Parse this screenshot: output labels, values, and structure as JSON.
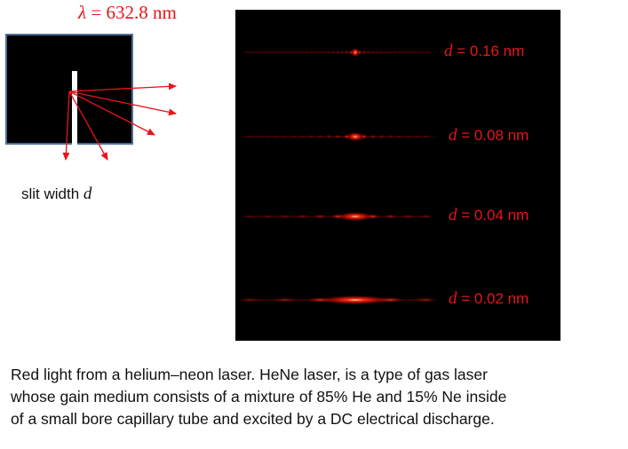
{
  "wavelength_label": {
    "symbol": "λ",
    "rest": " = 632.8  nm"
  },
  "slit_caption": {
    "text": "slit width ",
    "symbol": "d"
  },
  "patterns": [
    {
      "symbol": "d",
      "value": " = 0.16 nm"
    },
    {
      "symbol": "d",
      "value": " = 0.08 nm"
    },
    {
      "symbol": "d",
      "value": " = 0.04 nm"
    },
    {
      "symbol": "d",
      "value": " = 0.02 nm"
    }
  ],
  "description": [
    "Red light from a helium–neon laser. HeNe laser, is a type of gas laser",
    "whose gain medium consists of a mixture of 85% He and 15% Ne inside",
    "of a small bore capillary tube and excited by a DC electrical discharge."
  ],
  "colors": {
    "laser_red": "#e8141a",
    "panel_border": "#4a6f9b"
  }
}
